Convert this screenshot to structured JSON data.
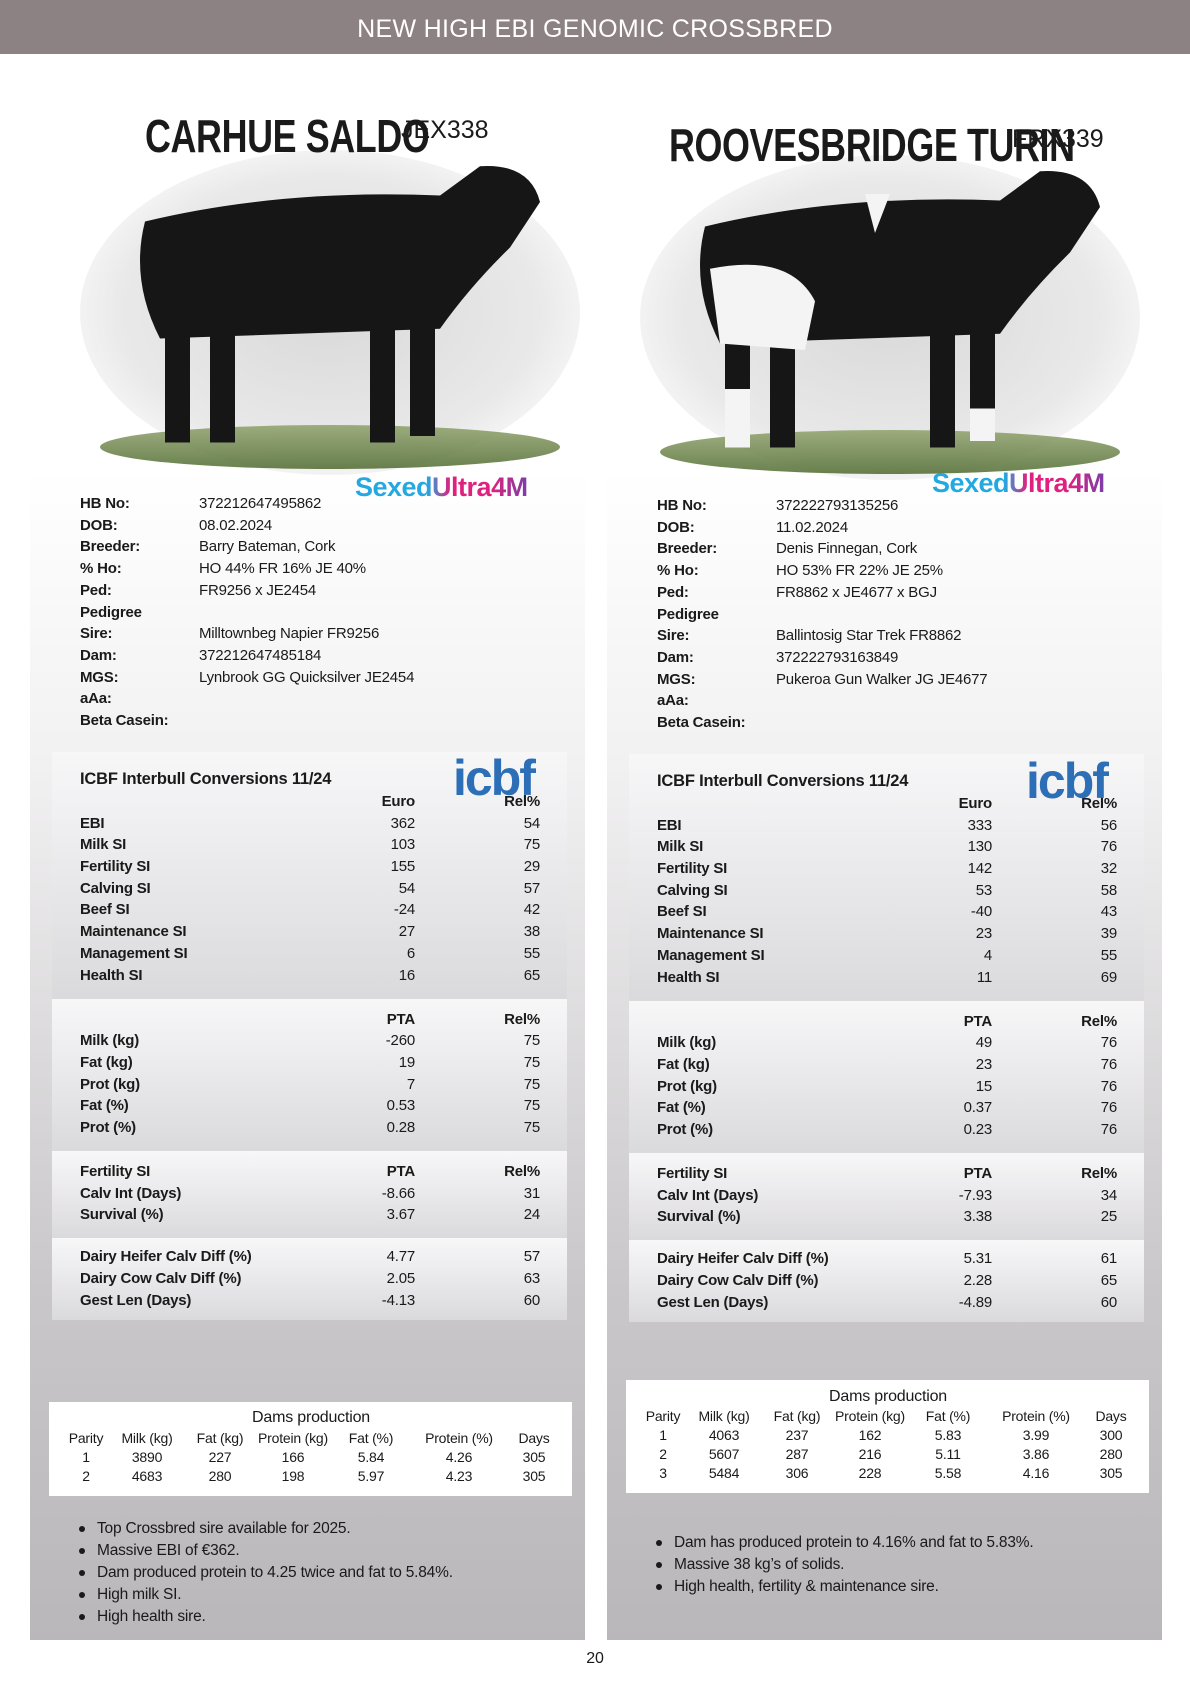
{
  "header": {
    "title": "NEW HIGH EBI GENOMIC CROSSBRED"
  },
  "bulls": [
    {
      "name": "CARHUE SALDO",
      "code": "JEX338",
      "brand": "SexedUltra4M",
      "details": [
        {
          "label": "HB No:",
          "value": "372212647495862"
        },
        {
          "label": "DOB:",
          "value": "08.02.2024"
        },
        {
          "label": "Breeder:",
          "value": "Barry Bateman, Cork"
        },
        {
          "label": "% Ho:",
          "value": "HO 44% FR 16% JE 40%"
        },
        {
          "label": "Ped:",
          "value": "FR9256 x JE2454"
        },
        {
          "label": "Pedigree"
        },
        {
          "label": "Sire:",
          "value": "Milltownbeg Napier FR9256"
        },
        {
          "label": "Dam:",
          "value": "372212647485184"
        },
        {
          "label": "MGS:",
          "value": "Lynbrook GG Quicksilver JE2454"
        },
        {
          "label": "aAa:"
        },
        {
          "label": "Beta Casein:"
        }
      ],
      "logo": "icbf",
      "conversions_title": "ICBF Interbull Conversions 11/24",
      "blocks": [
        {
          "columns": [
            "Euro",
            "Rel%"
          ],
          "rows": [
            [
              "EBI",
              "362",
              "54"
            ],
            [
              "Milk SI",
              "103",
              "75"
            ],
            [
              "Fertility SI",
              "155",
              "29"
            ],
            [
              "Calving SI",
              "54",
              "57"
            ],
            [
              "Beef SI",
              "-24",
              "42"
            ],
            [
              "Maintenance SI",
              "27",
              "38"
            ],
            [
              "Management SI",
              "6",
              "55"
            ],
            [
              "Health SI",
              "16",
              "65"
            ]
          ]
        },
        {
          "columns": [
            "PTA",
            "Rel%"
          ],
          "rows": [
            [
              "Milk (kg)",
              "-260",
              "75"
            ],
            [
              "Fat (kg)",
              "19",
              "75"
            ],
            [
              "Prot (kg)",
              "7",
              "75"
            ],
            [
              "Fat (%)",
              "0.53",
              "75"
            ],
            [
              "Prot (%)",
              "0.28",
              "75"
            ]
          ]
        },
        {
          "label": "Fertility SI",
          "columns": [
            "PTA",
            "Rel%"
          ],
          "rows": [
            [
              "Calv Int (Days)",
              "-8.66",
              "31"
            ],
            [
              "Survival (%)",
              "3.67",
              "24"
            ]
          ]
        },
        {
          "rows": [
            [
              "Dairy Heifer Calv Diff (%)",
              "4.77",
              "57"
            ],
            [
              "Dairy Cow Calv Diff (%)",
              "2.05",
              "63"
            ],
            [
              "Gest Len (Days)",
              "-4.13",
              "60"
            ]
          ]
        }
      ],
      "dams": {
        "title": "Dams production",
        "columns": [
          "Parity",
          "Milk (kg)",
          "Fat (kg)",
          "Protein (kg)",
          "Fat (%)",
          "Protein (%)",
          "Days"
        ],
        "rows": [
          [
            "1",
            "3890",
            "227",
            "166",
            "5.84",
            "4.26",
            "305"
          ],
          [
            "2",
            "4683",
            "280",
            "198",
            "5.97",
            "4.23",
            "305"
          ]
        ]
      },
      "notes": [
        "Top Crossbred sire available for 2025.",
        "Massive EBI of €362.",
        "Dam produced protein to 4.25 twice and fat to 5.84%.",
        "High milk SI.",
        "High health sire."
      ]
    },
    {
      "name": "ROOVESBRIDGE TURIN",
      "code": "FRX339",
      "brand": "SexedUltra4M",
      "details": [
        {
          "label": "HB No:",
          "value": "372222793135256"
        },
        {
          "label": "DOB:",
          "value": "11.02.2024"
        },
        {
          "label": "Breeder:",
          "value": "Denis Finnegan, Cork"
        },
        {
          "label": "% Ho:",
          "value": "HO 53% FR 22% JE 25%"
        },
        {
          "label": "Ped:",
          "value": "FR8862 x JE4677 x BGJ"
        },
        {
          "label": "Pedigree"
        },
        {
          "label": "Sire:",
          "value": "Ballintosig Star Trek FR8862"
        },
        {
          "label": "Dam:",
          "value": "372222793163849"
        },
        {
          "label": "MGS:",
          "value": "Pukeroa Gun Walker JG JE4677"
        },
        {
          "label": "aAa:"
        },
        {
          "label": "Beta Casein:"
        }
      ],
      "logo": "icbf",
      "conversions_title": "ICBF Interbull Conversions 11/24",
      "blocks": [
        {
          "columns": [
            "Euro",
            "Rel%"
          ],
          "rows": [
            [
              "EBI",
              "333",
              "56"
            ],
            [
              "Milk SI",
              "130",
              "76"
            ],
            [
              "Fertility SI",
              "142",
              "32"
            ],
            [
              "Calving SI",
              "53",
              "58"
            ],
            [
              "Beef SI",
              "-40",
              "43"
            ],
            [
              "Maintenance SI",
              "23",
              "39"
            ],
            [
              "Management SI",
              "4",
              "55"
            ],
            [
              "Health SI",
              "11",
              "69"
            ]
          ]
        },
        {
          "columns": [
            "PTA",
            "Rel%"
          ],
          "rows": [
            [
              "Milk (kg)",
              "49",
              "76"
            ],
            [
              "Fat (kg)",
              "23",
              "76"
            ],
            [
              "Prot (kg)",
              "15",
              "76"
            ],
            [
              "Fat (%)",
              "0.37",
              "76"
            ],
            [
              "Prot (%)",
              "0.23",
              "76"
            ]
          ]
        },
        {
          "label": "Fertility SI",
          "columns": [
            "PTA",
            "Rel%"
          ],
          "rows": [
            [
              "Calv Int (Days)",
              "-7.93",
              "34"
            ],
            [
              "Survival (%)",
              "3.38",
              "25"
            ]
          ]
        },
        {
          "rows": [
            [
              "Dairy Heifer Calv Diff (%)",
              "5.31",
              "61"
            ],
            [
              "Dairy Cow Calv Diff (%)",
              "2.28",
              "65"
            ],
            [
              "Gest Len (Days)",
              "-4.89",
              "60"
            ]
          ]
        }
      ],
      "dams": {
        "title": "Dams production",
        "columns": [
          "Parity",
          "Milk (kg)",
          "Fat (kg)",
          "Protein (kg)",
          "Fat (%)",
          "Protein (%)",
          "Days"
        ],
        "rows": [
          [
            "1",
            "4063",
            "237",
            "162",
            "5.83",
            "3.99",
            "300"
          ],
          [
            "2",
            "5607",
            "287",
            "216",
            "5.11",
            "3.86",
            "280"
          ],
          [
            "3",
            "5484",
            "306",
            "228",
            "5.58",
            "4.16",
            "305"
          ]
        ]
      },
      "notes": [
        "Dam has produced protein to 4.16% and fat to 5.83%.",
        "Massive 38 kg’s of solids.",
        "High health, fertility & maintenance sire."
      ]
    }
  ],
  "page_number": "20"
}
